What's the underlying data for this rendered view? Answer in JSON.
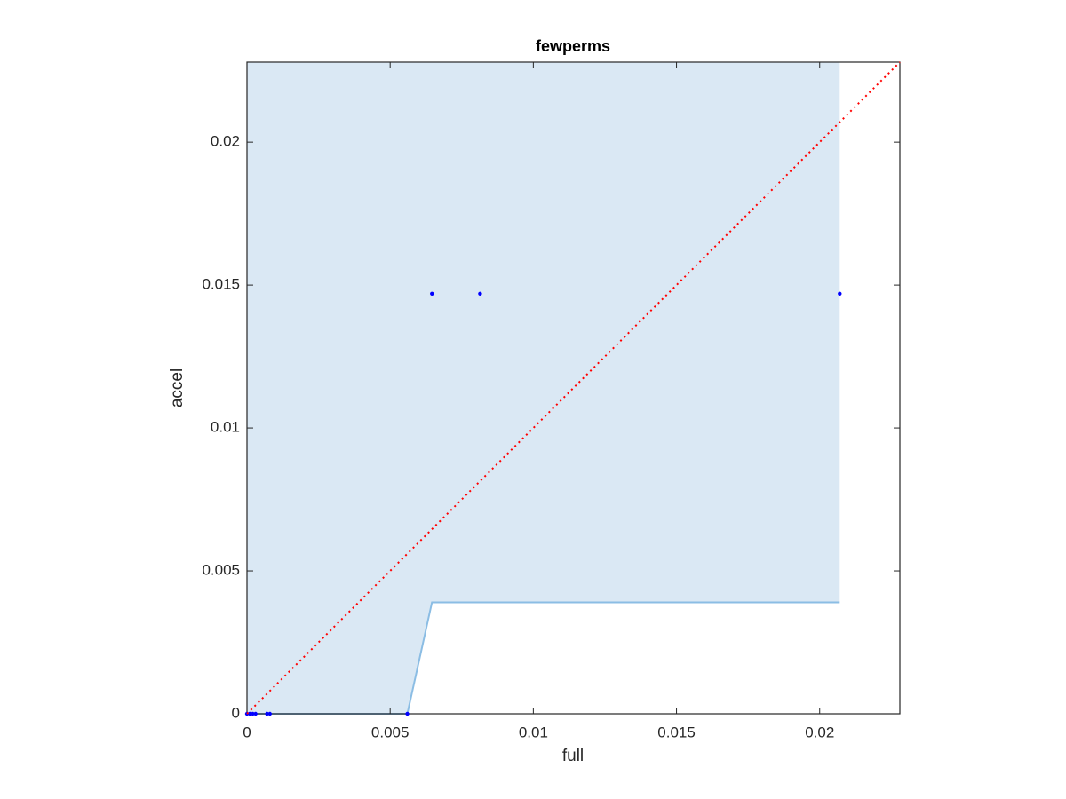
{
  "chart_data": {
    "type": "scatter",
    "title": "fewperms",
    "xlabel": "full",
    "ylabel": "accel",
    "xlim": [
      0,
      0.0228
    ],
    "ylim": [
      0,
      0.0228
    ],
    "xticks": [
      0,
      0.005,
      0.01,
      0.015,
      0.02
    ],
    "yticks": [
      0,
      0.005,
      0.01,
      0.015,
      0.02
    ],
    "series": [
      {
        "type": "area",
        "color": "#8bbde4",
        "fill": "#dae8f4",
        "x": [
          0,
          0.0056,
          0.00646,
          0.0207
        ],
        "values": [
          0,
          0,
          0.0039,
          0.0039
        ]
      },
      {
        "type": "scatter",
        "color": "#0000ff",
        "x": [
          0,
          0.0001,
          0.0002,
          0.0003,
          0.0007,
          0.0008,
          0.0056,
          0.00646,
          0.00814,
          0.0207
        ],
        "values": [
          0,
          0,
          0,
          0,
          0,
          0,
          0,
          0.0147,
          0.0147,
          0.0147
        ]
      },
      {
        "type": "line",
        "color": "#ff0000",
        "dash": "dotted",
        "x": [
          0,
          0.0228
        ],
        "values": [
          0,
          0.0228
        ]
      }
    ]
  }
}
